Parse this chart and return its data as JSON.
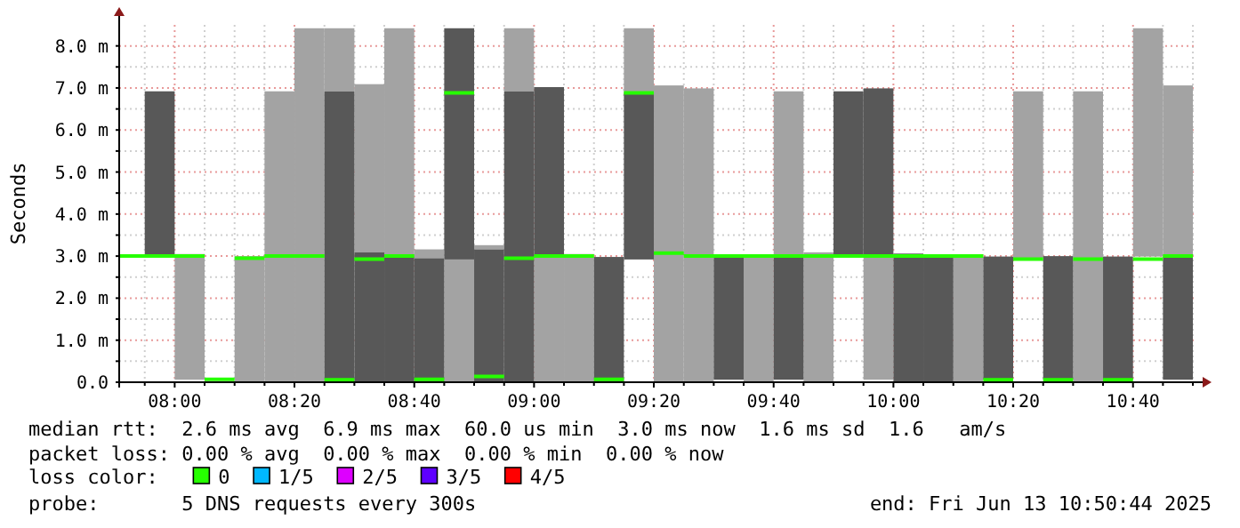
{
  "chart_data": {
    "type": "bar",
    "ylabel": "Seconds",
    "legend_title": "loss color:",
    "legend": "bottom",
    "grid": true,
    "xlim": [
      7.8456,
      10.8456
    ],
    "ylim": [
      0,
      8.5
    ],
    "x": [
      7.9167,
      8.0,
      8.0833,
      8.1667,
      8.25,
      8.3333,
      8.4167,
      8.5,
      8.5833,
      8.6667,
      8.75,
      8.8333,
      8.9167,
      9.0,
      9.0833,
      9.1667,
      9.25,
      9.3333,
      9.4167,
      9.5,
      9.5833,
      9.6667,
      9.75,
      9.8333,
      9.9167,
      10.0,
      10.0833,
      10.1667,
      10.25,
      10.3333,
      10.4167,
      10.5,
      10.5833,
      10.6667,
      10.75,
      10.8333
    ],
    "xticks": [
      {
        "value": 7.9167,
        "label": null
      },
      {
        "value": 8.0,
        "label": "08:00"
      },
      {
        "value": 8.0833,
        "label": null
      },
      {
        "value": 8.1667,
        "label": null
      },
      {
        "value": 8.25,
        "label": null
      },
      {
        "value": 8.3333,
        "label": "08:20"
      },
      {
        "value": 8.4167,
        "label": null
      },
      {
        "value": 8.5,
        "label": null
      },
      {
        "value": 8.5833,
        "label": null
      },
      {
        "value": 8.6667,
        "label": "08:40"
      },
      {
        "value": 8.75,
        "label": null
      },
      {
        "value": 8.8333,
        "label": null
      },
      {
        "value": 8.9167,
        "label": null
      },
      {
        "value": 9.0,
        "label": "09:00"
      },
      {
        "value": 9.0833,
        "label": null
      },
      {
        "value": 9.1667,
        "label": null
      },
      {
        "value": 9.25,
        "label": null
      },
      {
        "value": 9.3333,
        "label": "09:20"
      },
      {
        "value": 9.4167,
        "label": null
      },
      {
        "value": 9.5,
        "label": null
      },
      {
        "value": 9.5833,
        "label": null
      },
      {
        "value": 9.6667,
        "label": "09:40"
      },
      {
        "value": 9.75,
        "label": null
      },
      {
        "value": 9.8333,
        "label": null
      },
      {
        "value": 9.9167,
        "label": null
      },
      {
        "value": 10.0,
        "label": "10:00"
      },
      {
        "value": 10.0833,
        "label": null
      },
      {
        "value": 10.1667,
        "label": null
      },
      {
        "value": 10.25,
        "label": null
      },
      {
        "value": 10.3333,
        "label": "10:20"
      },
      {
        "value": 10.4167,
        "label": null
      },
      {
        "value": 10.5,
        "label": null
      },
      {
        "value": 10.5833,
        "label": null
      },
      {
        "value": 10.6667,
        "label": "10:40"
      },
      {
        "value": 10.75,
        "label": null
      },
      {
        "value": 10.8333,
        "label": null
      }
    ],
    "yticks": [
      {
        "value": 0,
        "label": "0.0"
      },
      {
        "value": 0.5,
        "label": null
      },
      {
        "value": 1,
        "label": "1.0 m"
      },
      {
        "value": 1.5,
        "label": null
      },
      {
        "value": 2,
        "label": "2.0 m"
      },
      {
        "value": 2.5,
        "label": null
      },
      {
        "value": 3,
        "label": "3.0 m"
      },
      {
        "value": 3.5,
        "label": null
      },
      {
        "value": 4,
        "label": "4.0 m"
      },
      {
        "value": 4.5,
        "label": null
      },
      {
        "value": 5,
        "label": "5.0 m"
      },
      {
        "value": 5.5,
        "label": null
      },
      {
        "value": 6,
        "label": "6.0 m"
      },
      {
        "value": 6.5,
        "label": null
      },
      {
        "value": 7,
        "label": "7.0 m"
      },
      {
        "value": 7.5,
        "label": null
      },
      {
        "value": 8,
        "label": "8.0 m"
      }
    ],
    "series": [
      {
        "color": "#a3a3a3",
        "base": [
          null,
          null,
          0.06,
          null,
          0,
          0,
          0,
          6.92,
          3.09,
          2.99,
          2.95,
          0,
          3.16,
          6.92,
          0,
          0,
          null,
          6.88,
          0,
          0,
          null,
          0,
          2.99,
          0,
          null,
          0.06,
          null,
          null,
          0,
          null,
          2.95,
          null,
          0,
          null,
          2.99,
          2.99
        ],
        "values": [
          null,
          null,
          2.99,
          null,
          3.0,
          6.92,
          8.42,
          1.5,
          4.0,
          5.43,
          0.21,
          2.92,
          0.1,
          1.5,
          2.99,
          3.05,
          null,
          1.54,
          7.06,
          6.99,
          null,
          2.99,
          3.93,
          3.09,
          null,
          2.93,
          null,
          null,
          2.99,
          null,
          3.97,
          null,
          6.92,
          null,
          5.43,
          4.07
        ]
      },
      {
        "color": "#585858",
        "base": [
          null,
          2.98,
          null,
          null,
          null,
          null,
          null,
          0,
          0,
          0,
          0,
          2.92,
          0,
          0,
          2.99,
          null,
          0,
          2.92,
          null,
          null,
          0.06,
          null,
          0.06,
          null,
          2.99,
          2.99,
          0,
          0,
          null,
          0.06,
          null,
          0.06,
          null,
          0.06,
          null,
          0.06
        ],
        "values": [
          null,
          3.94,
          null,
          null,
          null,
          null,
          null,
          6.92,
          3.09,
          2.99,
          2.95,
          5.5,
          3.16,
          6.92,
          4.03,
          null,
          2.98,
          3.96,
          null,
          null,
          2.93,
          null,
          2.93,
          null,
          3.93,
          4.0,
          3.06,
          2.99,
          null,
          2.93,
          null,
          2.94,
          null,
          2.93,
          null,
          2.93
        ]
      },
      {
        "type": "step",
        "name": "0",
        "color": "#26ff00",
        "values": [
          3.0,
          3.0,
          3.0,
          0.07,
          2.95,
          3.0,
          3.0,
          0.06,
          2.93,
          3.0,
          0.07,
          6.88,
          0.14,
          2.95,
          3.0,
          3.0,
          0.07,
          6.88,
          3.07,
          3.0,
          3.0,
          3.0,
          3.0,
          3.0,
          3.0,
          3.0,
          3.0,
          3.0,
          3.0,
          0.06,
          2.93,
          0.06,
          2.93,
          0.06,
          2.93,
          3.0
        ]
      },
      {
        "type": "step",
        "name": "1/5",
        "color": "#00b8ff",
        "values": [
          null,
          null,
          null,
          null,
          null,
          null,
          null,
          null,
          null,
          null,
          null,
          null,
          null,
          null,
          null,
          null,
          null,
          null,
          null,
          null,
          null,
          null,
          null,
          null,
          null,
          null,
          null,
          null,
          null,
          null,
          null,
          null,
          null,
          null,
          null,
          null
        ]
      },
      {
        "type": "step",
        "name": "2/5",
        "color": "#dd00ff",
        "values": [
          null,
          null,
          null,
          null,
          null,
          null,
          null,
          null,
          null,
          null,
          null,
          null,
          null,
          null,
          null,
          null,
          null,
          null,
          null,
          null,
          null,
          null,
          null,
          null,
          null,
          null,
          null,
          null,
          null,
          null,
          null,
          null,
          null,
          null,
          null,
          null
        ]
      },
      {
        "type": "step",
        "name": "3/5",
        "color": "#5e00ff",
        "values": [
          null,
          null,
          null,
          null,
          null,
          null,
          null,
          null,
          null,
          null,
          null,
          null,
          null,
          null,
          null,
          null,
          null,
          null,
          null,
          null,
          null,
          null,
          null,
          null,
          null,
          null,
          null,
          null,
          null,
          null,
          null,
          null,
          null,
          null,
          null,
          null
        ]
      },
      {
        "type": "step",
        "name": "4/5",
        "color": "#ff0000",
        "values": [
          null,
          null,
          null,
          null,
          null,
          null,
          null,
          null,
          null,
          null,
          null,
          null,
          null,
          null,
          null,
          null,
          null,
          null,
          null,
          null,
          null,
          null,
          null,
          null,
          null,
          null,
          null,
          null,
          null,
          null,
          null,
          null,
          null,
          null,
          null,
          null
        ]
      }
    ],
    "annotations": [
      "median rtt:  2.6 ms avg  6.9 ms max  60.0 us min  3.0 ms now  1.6 ms sd  1.6   am/s",
      "packet loss: 0.00 % avg  0.00 % max  0.00 % min  0.00 % now",
      "probe:       5 DNS requests every 300s",
      "end: Fri Jun 13 10:50:44 2025"
    ]
  }
}
